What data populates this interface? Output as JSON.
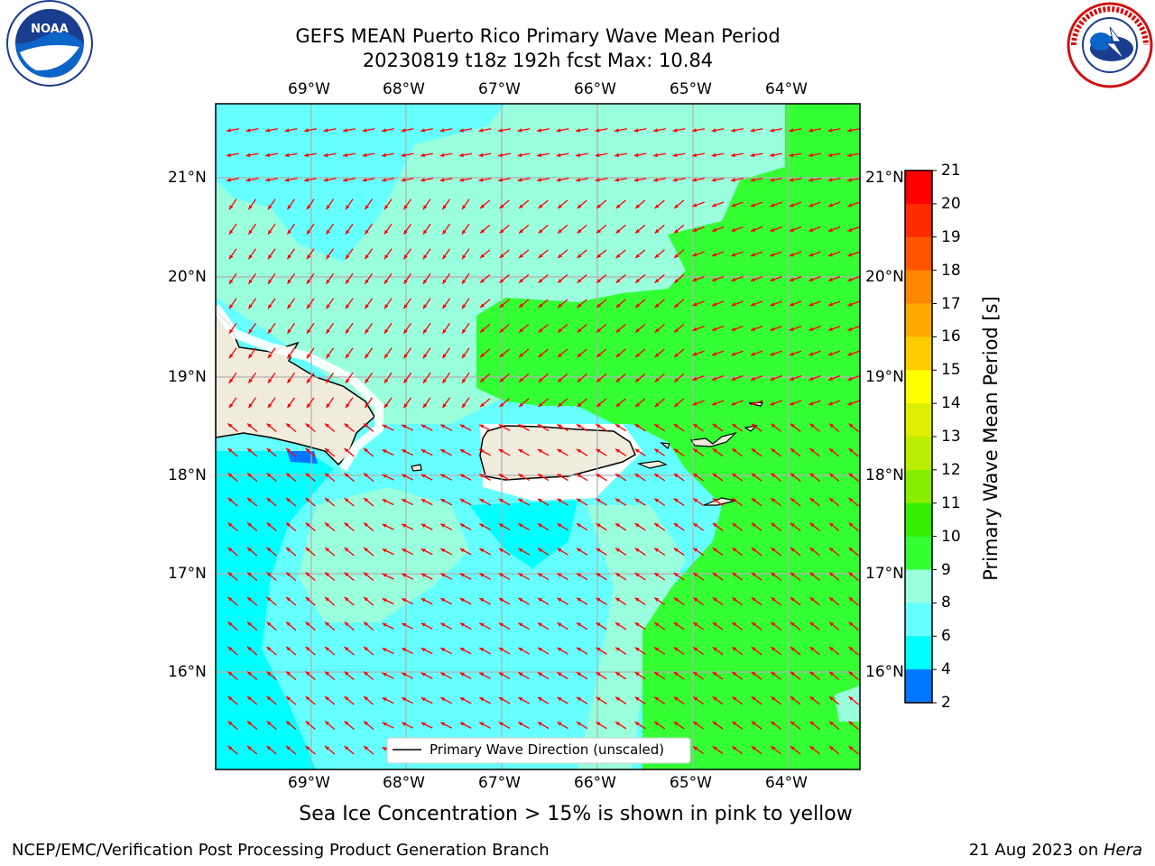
{
  "title": {
    "line1": "GEFS MEAN Puerto Rico Primary Wave Mean Period",
    "line2": "20230819 t18z 192h fcst   Max: 10.84"
  },
  "logos": {
    "left": {
      "icon": "noaa-logo",
      "text": "NOAA"
    },
    "right": {
      "icon": "national-weather-service-logo",
      "text": "NATIONAL WEATHER SERVICE"
    }
  },
  "map": {
    "lon_labels": [
      "69°W",
      "68°W",
      "67°W",
      "66°W",
      "65°W",
      "64°W"
    ],
    "lat_labels": [
      "21°N",
      "20°N",
      "19°N",
      "18°N",
      "17°N",
      "16°N"
    ],
    "legend_label": "Primary Wave Direction (unscaled)",
    "arrow_color": "#ff0000",
    "land_color": "#efecdc"
  },
  "colorbar": {
    "label": "Primary Wave Mean Period [s]",
    "ticks": [
      "21",
      "20",
      "19",
      "18",
      "17",
      "16",
      "15",
      "14",
      "13",
      "12",
      "11",
      "10",
      "9",
      "8",
      "6",
      "4",
      "2"
    ],
    "colors": [
      "#ff0000",
      "#ff2a00",
      "#ff5500",
      "#ff8800",
      "#ffaa00",
      "#ffcc00",
      "#ffff00",
      "#ddee00",
      "#bbee00",
      "#88ee00",
      "#33ee00",
      "#33ff33",
      "#99ffdd",
      "#66ffff",
      "#00ffff",
      "#0077ff",
      "#0000ff"
    ]
  },
  "note": "Sea Ice Concentration > 15% is shown in pink to yellow",
  "footer": {
    "left": "NCEP/EMC/Verification Post Processing Product Generation Branch",
    "date": "21 Aug 2023 on ",
    "machine": "Hera"
  }
}
